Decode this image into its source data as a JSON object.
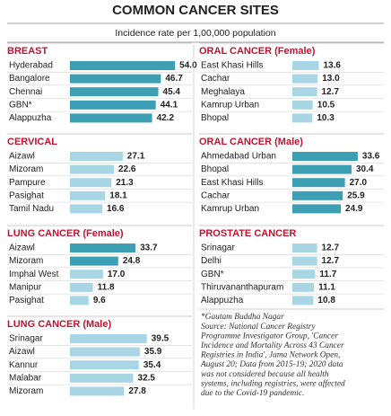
{
  "title": "COMMON CANCER SITES",
  "subtitle": "Incidence rate per 1,00,000 population",
  "note": [
    "*Gautam Buddha Nagar",
    "Source: National Cancer Registry",
    "Programme Investigator Group, 'Cancer",
    "Incidence and Mortality Across 43 Cancer",
    "Registries in India', Jama Network Open,",
    "August 20; Data from 2015-19; 2020 data",
    "was not considered because all health",
    "systems, including registries, were affected",
    "due to the Covid-19 pandemic."
  ],
  "chart_data": [
    {
      "type": "bar",
      "title": "BREAST",
      "categories": [
        "Hyderabad",
        "Bangalore",
        "Chennai",
        "GBN*",
        "Alappuzha"
      ],
      "values": [
        54.0,
        46.7,
        45.4,
        44.1,
        42.2
      ],
      "value_labels": [
        "54.0",
        "46.7",
        "45.4",
        "44.1",
        "42.2"
      ],
      "colors": [
        "#3c9fb4",
        "#3c9fb4",
        "#3c9fb4",
        "#3c9fb4",
        "#3c9fb4"
      ]
    },
    {
      "type": "bar",
      "title": "CERVICAL",
      "categories": [
        "Aizawl",
        "Mizoram",
        "Pampure",
        "Pasighat",
        "Tamil Nadu"
      ],
      "values": [
        27.1,
        22.6,
        21.3,
        18.1,
        16.6
      ],
      "colors": [
        "#a8d6e4",
        "#a8d6e4",
        "#a8d6e4",
        "#a8d6e4",
        "#a8d6e4"
      ]
    },
    {
      "type": "bar",
      "title": "LUNG CANCER (Female)",
      "categories": [
        "Aizawl",
        "Mizoram",
        "Imphal West",
        "Manipur",
        "Pasighat"
      ],
      "values": [
        33.7,
        24.8,
        17.0,
        11.8,
        9.6
      ],
      "value_labels": [
        "33.7",
        "24.8",
        "17.0",
        "11.8",
        "9.6"
      ],
      "colors": [
        "#3c9fb4",
        "#3c9fb4",
        "#a8d6e4",
        "#a8d6e4",
        "#a8d6e4"
      ]
    },
    {
      "type": "bar",
      "title": "LUNG CANCER (Male)",
      "categories": [
        "Srinagar",
        "Aizawl",
        "Kannur",
        "Malabar",
        "Mizoram"
      ],
      "values": [
        39.5,
        35.9,
        35.4,
        32.5,
        27.8
      ],
      "colors": [
        "#a8d6e4",
        "#a8d6e4",
        "#a8d6e4",
        "#a8d6e4",
        "#a8d6e4"
      ]
    },
    {
      "type": "bar",
      "title": "ORAL CANCER (Female)",
      "categories": [
        "East Khasi Hills",
        "Cachar",
        "Meghalaya",
        "Kamrup Urban",
        "Bhopal"
      ],
      "values": [
        13.6,
        13.0,
        12.7,
        10.5,
        10.3
      ],
      "value_labels": [
        "13.6",
        "13.0",
        "12.7",
        "10.5",
        "10.3"
      ],
      "colors": [
        "#a8d6e4",
        "#a8d6e4",
        "#a8d6e4",
        "#a8d6e4",
        "#a8d6e4"
      ]
    },
    {
      "type": "bar",
      "title": "ORAL CANCER (Male)",
      "categories": [
        "Ahmedabad Urban",
        "Bhopal",
        "East Khasi Hills",
        "Cachar",
        "Kamrup Urban"
      ],
      "values": [
        33.6,
        30.4,
        27.0,
        25.9,
        24.9
      ],
      "value_labels": [
        "33.6",
        "30.4",
        "27.0",
        "25.9",
        "24.9"
      ],
      "colors": [
        "#3c9fb4",
        "#3c9fb4",
        "#3c9fb4",
        "#3c9fb4",
        "#3c9fb4"
      ]
    },
    {
      "type": "bar",
      "title": "PROSTATE CANCER",
      "categories": [
        "Srinagar",
        "Delhi",
        "GBN*",
        "Thiruvananthapuram",
        "Alappuzha"
      ],
      "values": [
        12.7,
        12.7,
        11.7,
        11.1,
        10.8
      ],
      "colors": [
        "#a8d6e4",
        "#a8d6e4",
        "#a8d6e4",
        "#a8d6e4",
        "#a8d6e4"
      ]
    }
  ]
}
